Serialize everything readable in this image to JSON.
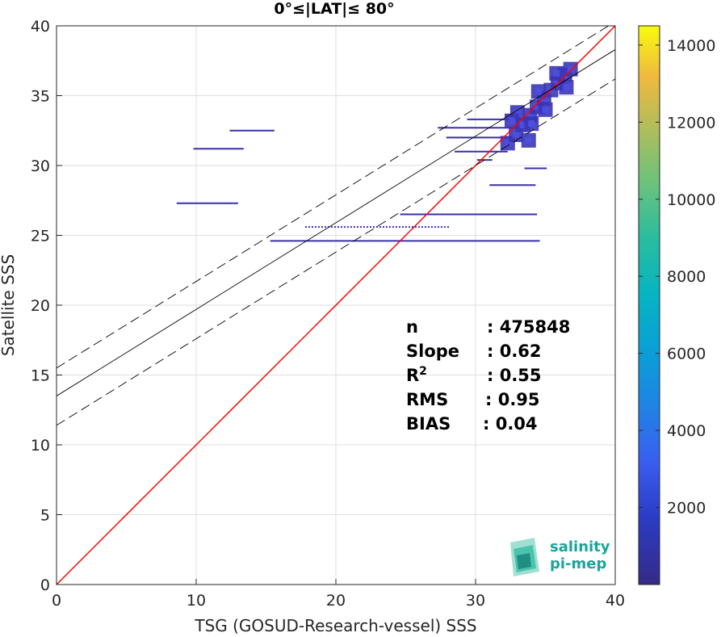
{
  "chart_data": {
    "type": "scatter",
    "title": "0°≤|LAT|≤ 80°",
    "xlabel": "TSG (GOSUD-Research-vessel) SSS",
    "ylabel": "Satellite SSS",
    "xlim": [
      0,
      40
    ],
    "ylim": [
      0,
      40
    ],
    "xticks": [
      "0",
      "10",
      "20",
      "30",
      "40"
    ],
    "yticks": [
      "0",
      "5",
      "10",
      "15",
      "20",
      "25",
      "30",
      "35",
      "40"
    ],
    "grid": true,
    "colorbar": {
      "range": [
        0,
        14500
      ],
      "ticks": [
        "2000",
        "4000",
        "6000",
        "8000",
        "10000",
        "12000",
        "14000"
      ],
      "colormap": "parula"
    },
    "stats": [
      {
        "label": "n",
        "value": ": 475848"
      },
      {
        "label": "Slope",
        "value": ": 0.62"
      },
      {
        "label": "R",
        "sup": "2",
        "value": ": 0.55"
      },
      {
        "label": "RMS",
        "value": ": 0.95"
      },
      {
        "label": "BIAS",
        "value": ": 0.04"
      }
    ],
    "lines": {
      "identity": {
        "color": "#ff0000",
        "intercept": 0,
        "slope": 1
      },
      "fit": {
        "color": "#000000",
        "intercept": 13.5,
        "slope": 0.62
      },
      "fit_upper": {
        "color": "#000000",
        "intercept": 15.5,
        "slope": 0.62,
        "dashed": true
      },
      "fit_lower": {
        "color": "#000000",
        "intercept": 11.4,
        "slope": 0.62,
        "dashed": true
      }
    },
    "segments": [
      {
        "y": 32.5,
        "x1": 12.4,
        "x2": 15.6
      },
      {
        "y": 31.2,
        "x1": 9.8,
        "x2": 13.4
      },
      {
        "y": 27.3,
        "x1": 8.6,
        "x2": 13.0
      },
      {
        "y": 26.5,
        "x1": 24.6,
        "x2": 34.4
      },
      {
        "y": 25.6,
        "x1": 17.8,
        "x2": 28.2,
        "dotted": true
      },
      {
        "y": 24.6,
        "x1": 15.3,
        "x2": 34.6
      },
      {
        "y": 28.6,
        "x1": 31.0,
        "x2": 34.3
      },
      {
        "y": 29.8,
        "x1": 33.5,
        "x2": 35.1
      },
      {
        "y": 33.3,
        "x1": 29.4,
        "x2": 33.8
      },
      {
        "y": 32.7,
        "x1": 27.3,
        "x2": 33.5
      },
      {
        "y": 32.0,
        "x1": 27.9,
        "x2": 33.2
      },
      {
        "y": 31.0,
        "x1": 28.5,
        "x2": 32.3
      },
      {
        "y": 30.4,
        "x1": 30.1,
        "x2": 31.2
      }
    ],
    "cloud": [
      {
        "x": 32.3,
        "y": 31.6
      },
      {
        "x": 32.9,
        "y": 32.2
      },
      {
        "x": 33.4,
        "y": 32.9
      },
      {
        "x": 33.9,
        "y": 33.6
      },
      {
        "x": 34.4,
        "y": 34.2
      },
      {
        "x": 34.9,
        "y": 34.8
      },
      {
        "x": 35.4,
        "y": 35.4
      },
      {
        "x": 35.9,
        "y": 35.9
      },
      {
        "x": 36.4,
        "y": 36.5
      },
      {
        "x": 36.8,
        "y": 36.9
      },
      {
        "x": 33.0,
        "y": 33.8
      },
      {
        "x": 34.0,
        "y": 33.0
      },
      {
        "x": 35.0,
        "y": 34.0
      },
      {
        "x": 34.5,
        "y": 35.3
      },
      {
        "x": 35.8,
        "y": 36.6
      },
      {
        "x": 36.5,
        "y": 35.6
      },
      {
        "x": 32.6,
        "y": 33.2
      },
      {
        "x": 33.8,
        "y": 31.8
      }
    ],
    "logo": {
      "line1": "salinity",
      "line2": "pi-mep"
    }
  }
}
